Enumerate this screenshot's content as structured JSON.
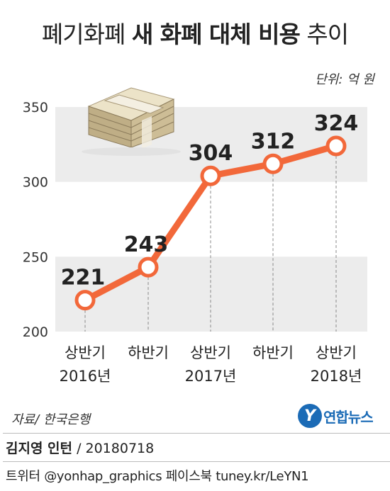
{
  "title": {
    "part1": "폐기화폐",
    "part2": "새 화폐 대체 비용",
    "part3": "추이"
  },
  "unit_label": "단위: 억 원",
  "source": "자료/ 한국은행",
  "logo": {
    "mark": "Y",
    "name": "연합뉴스"
  },
  "credit": {
    "name": "김지영 인턴",
    "date": "/ 20180718"
  },
  "social": "트위터 @yonhap_graphics  페이스북 tuney.kr/LeYN1",
  "colors": {
    "line": "#f2683a",
    "band": "#ececec",
    "marker_fill": "#ffffff"
  },
  "icon": "money-bundle-icon",
  "chart_data": {
    "type": "line",
    "title": "폐기화폐 새 화폐 대체 비용 추이",
    "unit": "억 원",
    "categories": [
      {
        "period": "상반기",
        "year": "2016년"
      },
      {
        "period": "하반기",
        "year": ""
      },
      {
        "period": "상반기",
        "year": "2017년"
      },
      {
        "period": "하반기",
        "year": ""
      },
      {
        "period": "상반기",
        "year": "2018년"
      }
    ],
    "values": [
      221,
      243,
      304,
      312,
      324
    ],
    "data_labels": [
      "221",
      "243",
      "304",
      "312",
      "324"
    ],
    "ylim": [
      200,
      350
    ],
    "yticks": [
      "350",
      "300",
      "250",
      "200"
    ],
    "grid": "alternating-bands"
  }
}
